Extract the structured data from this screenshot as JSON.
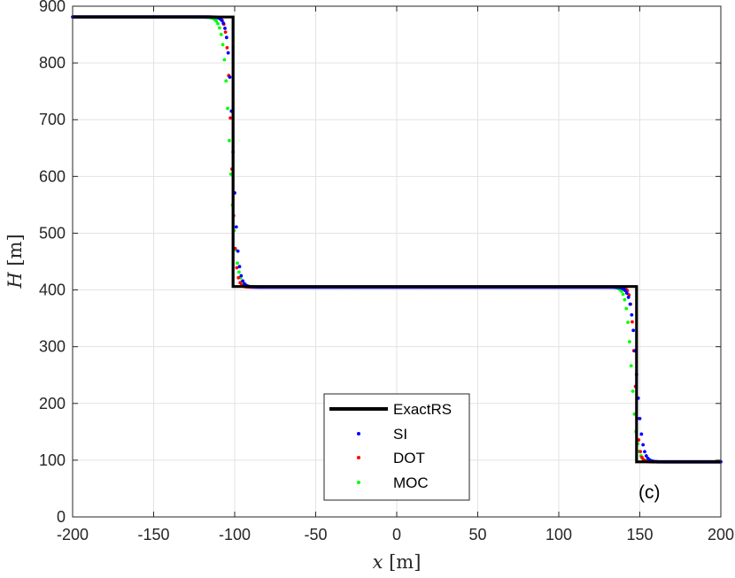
{
  "chart_data": {
    "type": "line",
    "title": "",
    "xlabel": {
      "var": "x",
      "unit": "[m]"
    },
    "ylabel": {
      "var": "H",
      "unit": "[m]"
    },
    "xlim": [
      -200,
      200
    ],
    "ylim": [
      0,
      900
    ],
    "xticks": [
      -200,
      -150,
      -100,
      -50,
      0,
      50,
      100,
      150,
      200
    ],
    "yticks": [
      0,
      100,
      200,
      300,
      400,
      500,
      600,
      700,
      800,
      900
    ],
    "xtick_labels": [
      "-200",
      "-150",
      "-100",
      "-50",
      "0",
      "50",
      "100",
      "150",
      "200"
    ],
    "ytick_labels": [
      "0",
      "100",
      "200",
      "300",
      "400",
      "500",
      "600",
      "700",
      "800",
      "900"
    ],
    "grid": true,
    "legend_position": "bottom-center",
    "annotation": "(c)",
    "series": [
      {
        "name": "ExactRS",
        "style": "line",
        "color": "#000000",
        "points": [
          [
            -200,
            881
          ],
          [
            -101,
            881
          ],
          [
            -101,
            406
          ],
          [
            148,
            406
          ],
          [
            148,
            97
          ],
          [
            200,
            97
          ]
        ]
      },
      {
        "name": "SI",
        "style": "dots",
        "color": "#0000ff",
        "levels": [
          881,
          405,
          97
        ],
        "jumps": [
          {
            "center": -101,
            "width": 3.2
          },
          {
            "center": 148,
            "width": 3.6
          }
        ]
      },
      {
        "name": "DOT",
        "style": "dots",
        "color": "#ff0000",
        "levels": [
          881,
          405,
          97
        ],
        "jumps": [
          {
            "center": -102,
            "width": 2.6
          },
          {
            "center": 147,
            "width": 2.4
          }
        ]
      },
      {
        "name": "MOC",
        "style": "dots",
        "color": "#00ff00",
        "levels": [
          881,
          405,
          97
        ],
        "jumps": [
          {
            "center": -103,
            "width": 4.0
          },
          {
            "center": 145,
            "width": 3.4
          }
        ]
      }
    ]
  }
}
